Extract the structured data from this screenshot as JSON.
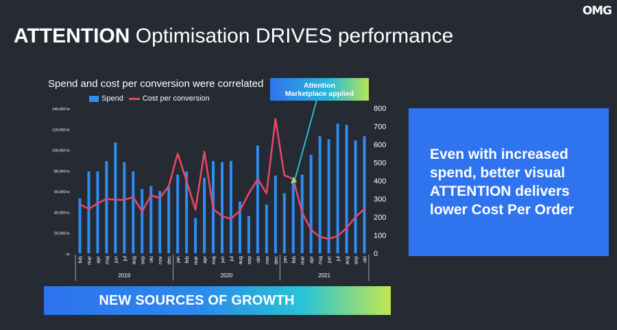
{
  "logo": "OMG",
  "title": {
    "strong": "ATTENTION",
    "rest": " Optimisation DRIVES performance"
  },
  "callout": {
    "line1": "Attention",
    "line2": "Marketplace applied"
  },
  "panel_text": "Even with increased\nspend, better visual\nATTENTION delivers\nlower Cost Per Order",
  "growth_banner": "NEW SOURCES OF GROWTH",
  "colors": {
    "spend": "#2f8cf0",
    "cpc": "#e74767",
    "background": "#252a33",
    "panel": "#2f74ee"
  },
  "chart_data": {
    "type": "bar",
    "title": "Spend and cost per conversion were correlated",
    "legend_position": "top",
    "categories": [
      "feb",
      "mar",
      "apr",
      "maj",
      "jun",
      "jul",
      "aug",
      "sep",
      "okt",
      "nov",
      "dec",
      "jan",
      "feb",
      "mar",
      "apr",
      "maj",
      "jun",
      "jul",
      "aug",
      "sep",
      "okt",
      "nov",
      "dec",
      "jan",
      "feb",
      "mar",
      "apr",
      "maj",
      "jun",
      "jul",
      "aug",
      "sep",
      "okt"
    ],
    "groups": [
      {
        "label": "2019",
        "count": 11
      },
      {
        "label": "2020",
        "count": 12
      },
      {
        "label": "2021",
        "count": 10
      }
    ],
    "series": [
      {
        "name": "Spend",
        "type": "bar",
        "axis": "left",
        "values": [
          53000,
          79000,
          79000,
          89000,
          107000,
          88000,
          79000,
          62000,
          65000,
          60000,
          64000,
          76000,
          79000,
          34000,
          73000,
          89000,
          88000,
          89000,
          50000,
          36000,
          104000,
          47000,
          75000,
          58000,
          69000,
          76000,
          95000,
          113000,
          110000,
          125000,
          124000,
          109000,
          113000
        ]
      },
      {
        "name": "Cost per conversion",
        "type": "line",
        "axis": "right",
        "values": [
          270,
          245,
          275,
          300,
          295,
          295,
          310,
          230,
          320,
          305,
          370,
          550,
          400,
          240,
          560,
          245,
          205,
          190,
          235,
          330,
          410,
          330,
          740,
          430,
          410,
          225,
          130,
          90,
          80,
          95,
          140,
          200,
          245
        ]
      }
    ],
    "y_left": {
      "min": 0,
      "max": 140000,
      "ticks": [
        0,
        20000,
        40000,
        60000,
        80000,
        100000,
        120000,
        140000
      ],
      "tick_labels": [
        "- kr.",
        "20,000 kr.",
        "40,000 kr.",
        "60,000 kr.",
        "80,000 kr.",
        "100,000 kr.",
        "120,000 kr.",
        "140,000 kr."
      ]
    },
    "y_right": {
      "min": 0,
      "max": 800,
      "ticks": [
        0,
        100,
        200,
        300,
        400,
        500,
        600,
        700,
        800
      ],
      "tick_labels": [
        "0",
        "100",
        "200",
        "300",
        "400",
        "500",
        "600",
        "700",
        "800"
      ]
    },
    "grid": false
  }
}
